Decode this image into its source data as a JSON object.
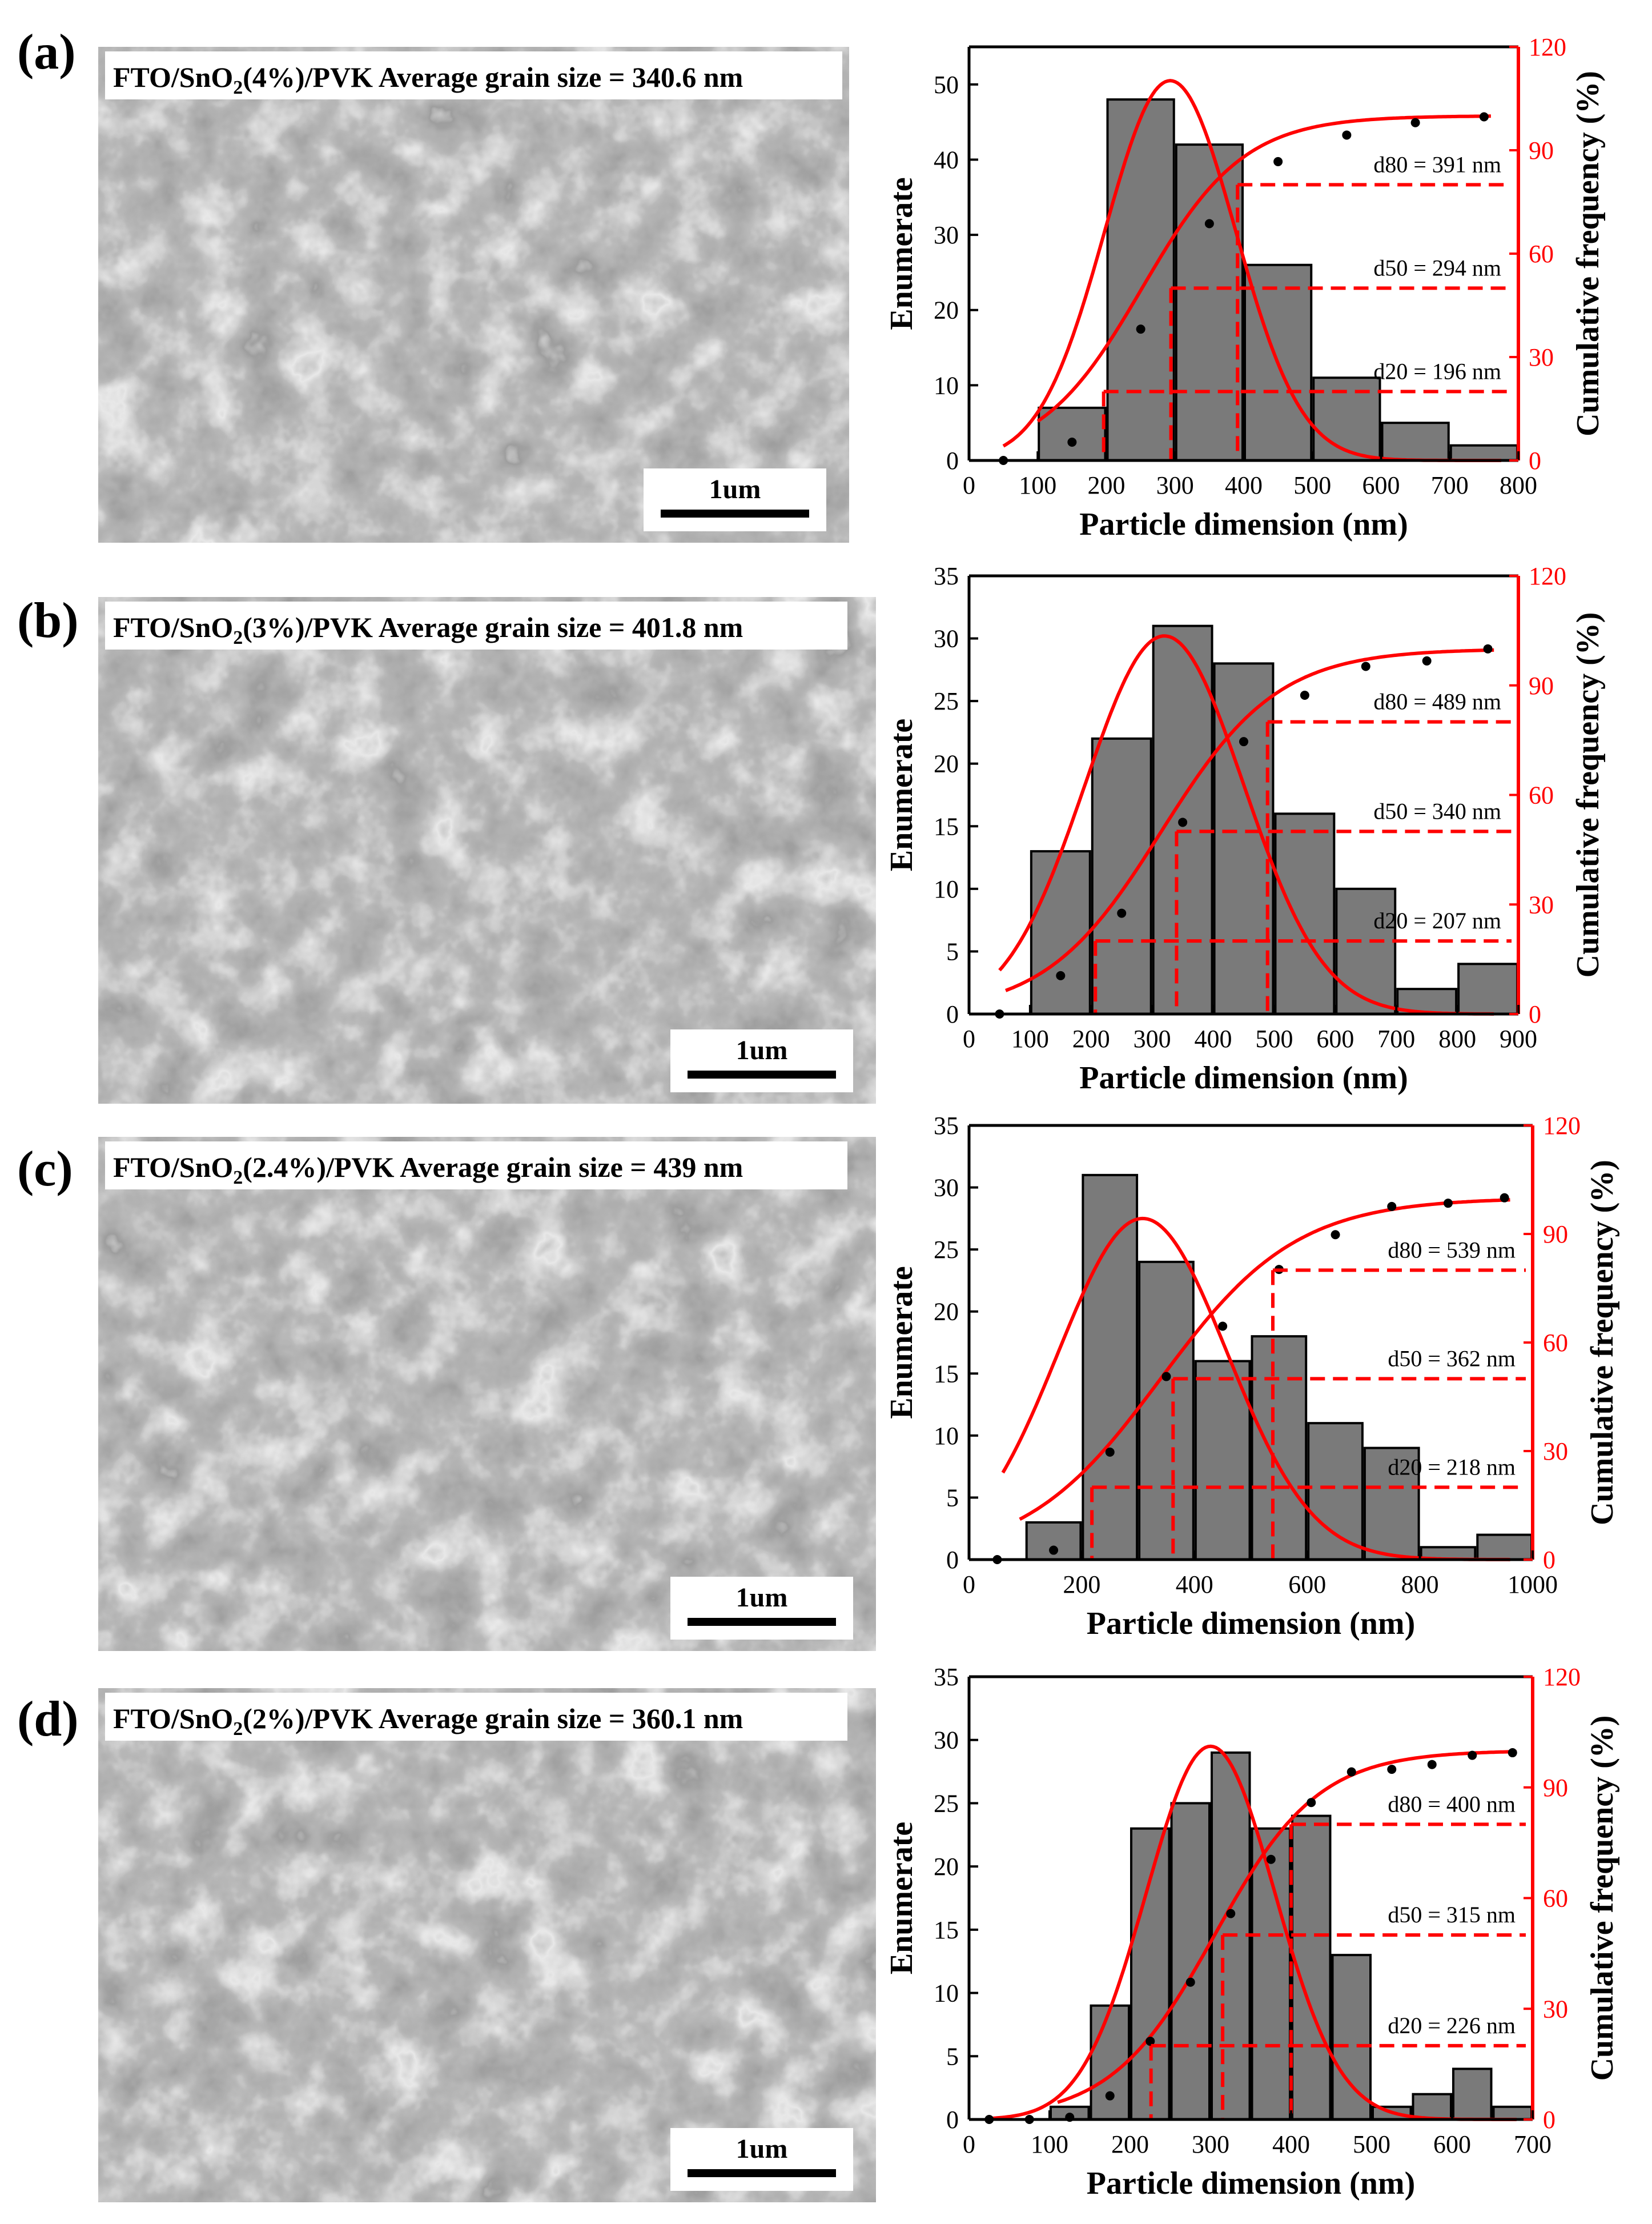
{
  "colors": {
    "bar_fill": "#7a7a7a",
    "bar_stroke": "#000000",
    "fit_line": "#ff0000",
    "dashed": "#ff0000",
    "points": "#000000",
    "axis_right": "#ff0000",
    "sem_bg": "#8c8c8c"
  },
  "panels": [
    {
      "label": "(a)",
      "sample_prefix": "FTO/SnO",
      "sample_sub": "2",
      "sample_suffix": "(4%)/PVK",
      "avg_text": "Average grain size = 340.6 nm",
      "scale_bar": "1um",
      "chart_data": {
        "type": "bar",
        "xlabel": "Particle dimension (nm)",
        "ylabel": "Enumerate",
        "y2label": "Cumulative frequency (%)",
        "xlim": [
          0,
          800
        ],
        "ylim": [
          0,
          55
        ],
        "y2lim": [
          0,
          120
        ],
        "xticks": [
          0,
          100,
          200,
          300,
          400,
          500,
          600,
          700,
          800
        ],
        "yticks": [
          0,
          10,
          20,
          30,
          40,
          50
        ],
        "y2ticks": [
          0,
          30,
          60,
          90,
          120
        ],
        "bin_width": 100,
        "bin_centers": [
          50,
          150,
          250,
          350,
          450,
          550,
          650,
          750
        ],
        "values": [
          0,
          7,
          48,
          42,
          26,
          11,
          5,
          2
        ],
        "gauss": {
          "amp": 50.5,
          "mu": 293,
          "sigma": 95,
          "x0": 50,
          "x1": 775
        },
        "cumulative": {
          "x": [
            50,
            150,
            250,
            350,
            450,
            550,
            650,
            750
          ],
          "y": [
            0,
            5.3,
            38.1,
            68.7,
            86.7,
            94.4,
            98,
            99.7
          ],
          "fit": {
            "k": 0.0135,
            "x0": 252,
            "xs": 100,
            "xe": 760
          }
        },
        "annotations": [
          {
            "label": "d20 = 196 nm",
            "d": 196,
            "level": 20
          },
          {
            "label": "d50 = 294 nm",
            "d": 294,
            "level": 50
          },
          {
            "label": "d80 = 391 nm",
            "d": 391,
            "level": 80
          }
        ]
      }
    },
    {
      "label": "(b)",
      "sample_prefix": "FTO/SnO",
      "sample_sub": "2",
      "sample_suffix": "(3%)/PVK",
      "avg_text": "Average grain size = 401.8 nm",
      "scale_bar": "1um",
      "chart_data": {
        "type": "bar",
        "xlabel": "Particle dimension (nm)",
        "ylabel": "Enumerate",
        "y2label": "Cumulative frequency (%)",
        "xlim": [
          0,
          900
        ],
        "ylim": [
          0,
          35
        ],
        "y2lim": [
          0,
          120
        ],
        "xticks": [
          0,
          100,
          200,
          300,
          400,
          500,
          600,
          700,
          800,
          900
        ],
        "yticks": [
          0,
          5,
          10,
          15,
          20,
          25,
          30,
          35
        ],
        "y2ticks": [
          0,
          30,
          60,
          90,
          120
        ],
        "bin_width": 100,
        "bin_centers": [
          50,
          150,
          250,
          350,
          450,
          550,
          650,
          750,
          850
        ],
        "values": [
          0,
          13,
          22,
          31,
          28,
          16,
          10,
          2,
          4
        ],
        "gauss": {
          "amp": 30.2,
          "mu": 320,
          "sigma": 130,
          "x0": 50,
          "x1": 860
        },
        "cumulative": {
          "x": [
            50,
            150,
            250,
            350,
            450,
            550,
            650,
            750,
            850
          ],
          "y": [
            0,
            10.5,
            27.6,
            52.5,
            74.6,
            87.3,
            95.2,
            96.7,
            100
          ],
          "fit": {
            "k": 0.0105,
            "x0": 315,
            "xs": 60,
            "xe": 860
          }
        },
        "annotations": [
          {
            "label": "d20 = 207 nm",
            "d": 207,
            "level": 20
          },
          {
            "label": "d50 = 340 nm",
            "d": 340,
            "level": 50
          },
          {
            "label": "d80 = 489 nm",
            "d": 489,
            "level": 80
          }
        ]
      }
    },
    {
      "label": "(c)",
      "sample_prefix": "FTO/SnO",
      "sample_sub": "2",
      "sample_suffix": "(2.4%)/PVK",
      "avg_text": "Average grain size = 439 nm",
      "scale_bar": "1um",
      "chart_data": {
        "type": "bar",
        "xlabel": "Particle dimension (nm)",
        "ylabel": "Enumerate",
        "y2label": "Cumulative frequency (%)",
        "xlim": [
          0,
          1000
        ],
        "ylim": [
          0,
          35
        ],
        "y2lim": [
          0,
          120
        ],
        "xticks": [
          0,
          200,
          400,
          600,
          800,
          1000
        ],
        "yticks": [
          0,
          5,
          10,
          15,
          20,
          25,
          30,
          35
        ],
        "y2ticks": [
          0,
          30,
          60,
          90,
          120
        ],
        "bin_width": 100,
        "bin_centers": [
          50,
          150,
          250,
          350,
          450,
          550,
          650,
          750,
          850,
          950
        ],
        "values": [
          0,
          3,
          31,
          24,
          16,
          18,
          11,
          9,
          1,
          2
        ],
        "gauss": {
          "amp": 27.5,
          "mu": 308,
          "sigma": 150,
          "x0": 60,
          "x1": 960
        },
        "cumulative": {
          "x": [
            50,
            150,
            250,
            350,
            450,
            550,
            650,
            750,
            850,
            950
          ],
          "y": [
            0,
            2.6,
            29.7,
            50.6,
            64.5,
            80.2,
            89.8,
            97.6,
            98.5,
            100
          ],
          "fit": {
            "k": 0.0083,
            "x0": 340,
            "xs": 90,
            "xe": 960
          }
        },
        "annotations": [
          {
            "label": "d20 = 218 nm",
            "d": 218,
            "level": 20
          },
          {
            "label": "d50 = 362 nm",
            "d": 362,
            "level": 50
          },
          {
            "label": "d80 = 539 nm",
            "d": 539,
            "level": 80
          }
        ]
      }
    },
    {
      "label": "(d)",
      "sample_prefix": "FTO/SnO",
      "sample_sub": "2",
      "sample_suffix": "(2%)/PVK",
      "avg_text": "Average grain size = 360.1 nm",
      "scale_bar": "1um",
      "chart_data": {
        "type": "bar",
        "xlabel": "Particle dimension (nm)",
        "ylabel": "Enumerate",
        "y2label": "Cumulative frequency (%)",
        "xlim": [
          0,
          700
        ],
        "ylim": [
          0,
          35
        ],
        "y2lim": [
          0,
          120
        ],
        "xticks": [
          0,
          100,
          200,
          300,
          400,
          500,
          600,
          700
        ],
        "yticks": [
          0,
          5,
          10,
          15,
          20,
          25,
          30,
          35
        ],
        "y2ticks": [
          0,
          30,
          60,
          90,
          120
        ],
        "bin_width": 50,
        "bin_centers": [
          25,
          75,
          125,
          175,
          225,
          275,
          325,
          375,
          425,
          475,
          525,
          575,
          625,
          675
        ],
        "values": [
          0,
          0,
          1,
          9,
          23,
          25,
          29,
          23,
          24,
          13,
          1,
          2,
          4,
          1
        ],
        "gauss": {
          "amp": 29.5,
          "mu": 300,
          "sigma": 80,
          "x0": 25,
          "x1": 680
        },
        "cumulative": {
          "x": [
            25,
            75,
            125,
            175,
            225,
            275,
            325,
            375,
            425,
            475,
            525,
            575,
            625,
            675
          ],
          "y": [
            0,
            0,
            0.6,
            6.4,
            21.2,
            37.2,
            55.8,
            70.5,
            85.9,
            94.2,
            94.9,
            96.2,
            98.7,
            99.4
          ],
          "fit": {
            "k": 0.0155,
            "x0": 305,
            "xs": 110,
            "xe": 680
          }
        },
        "annotations": [
          {
            "label": "d20 = 226 nm",
            "d": 226,
            "level": 20
          },
          {
            "label": "d50 = 315 nm",
            "d": 315,
            "level": 50
          },
          {
            "label": "d80 = 400 nm",
            "d": 400,
            "level": 80
          }
        ]
      }
    }
  ]
}
